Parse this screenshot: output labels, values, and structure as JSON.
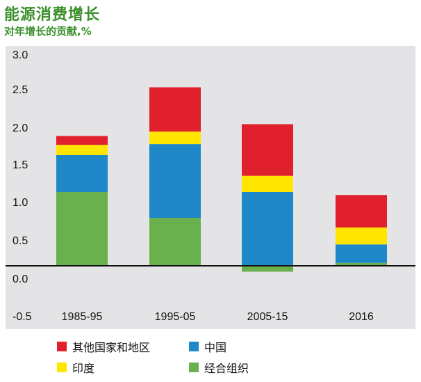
{
  "chart_data": {
    "type": "bar",
    "stacked": true,
    "title": "能源消费增长",
    "subtitle": "对年增长的贡献,%",
    "categories": [
      "1985-95",
      "1995-05",
      "2005-15",
      "2016"
    ],
    "yticks": [
      "3.0",
      "2.5",
      "2.0",
      "1.5",
      "1.0",
      "0.5",
      "0.0",
      "-0.5"
    ],
    "ylim": [
      -0.5,
      3.0
    ],
    "grid": false,
    "legend_position": "bottom",
    "series": [
      {
        "name": "经合组织",
        "color": "#6ab04c",
        "values": [
          1.0,
          0.65,
          -0.08,
          0.04
        ]
      },
      {
        "name": "中国",
        "color": "#1e88c8",
        "values": [
          0.5,
          1.0,
          1.0,
          0.25
        ]
      },
      {
        "name": "印度",
        "color": "#ffe500",
        "values": [
          0.14,
          0.17,
          0.22,
          0.23
        ]
      },
      {
        "name": "其他国家和地区",
        "color": "#e0202c",
        "values": [
          0.12,
          0.6,
          0.7,
          0.44
        ]
      }
    ],
    "legend_order": [
      3,
      1,
      2,
      0
    ]
  }
}
